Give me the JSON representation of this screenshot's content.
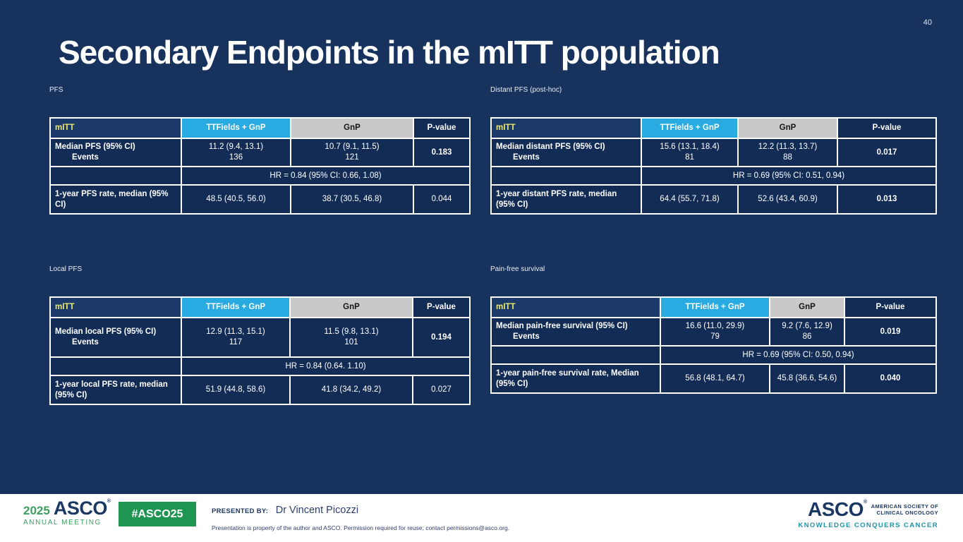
{
  "slide": {
    "page_number": "40",
    "title": "Secondary Endpoints in the mITT population"
  },
  "colors": {
    "slide_background": "#18325E",
    "table_cell_background": "#132C55",
    "header_left_background": "#1B3A69",
    "header_cyan": "#29ABE2",
    "header_gray": "#C9C9C9",
    "mitt_yellow": "#EDE96E",
    "border_white": "#FFFFFF",
    "footer_background": "#FFFFFF",
    "brand_navy": "#1B3764",
    "brand_green": "#3C9E5F",
    "badge_green": "#1F9552",
    "brand_teal": "#1E93A8"
  },
  "tables": [
    {
      "caption": "PFS",
      "header": [
        "mITT",
        "TTFields + GnP",
        "GnP",
        "P-value"
      ],
      "r1": {
        "label": "Median PFS (95% CI)",
        "sub": "Events",
        "v1": "11.2 (9.4, 13.1)",
        "v1b": "136",
        "v2": "10.7 (9.1, 11.5)",
        "v2b": "121",
        "p": "0.183"
      },
      "hr": "HR = 0.84 (95% CI: 0.66, 1.08)",
      "r3": {
        "label": "1-year PFS rate, median (95% CI)",
        "v1": "48.5 (40.5, 56.0)",
        "v2": "38.7 (30.5, 46.8)",
        "p": "0.044"
      }
    },
    {
      "caption": "Distant PFS (post-hoc)",
      "header": [
        "mITT",
        "TTFields + GnP",
        "GnP",
        "P-value"
      ],
      "r1": {
        "label": "Median distant PFS (95% CI)",
        "sub": "Events",
        "v1": "15.6 (13.1, 18.4)",
        "v1b": "81",
        "v2": "12.2 (11.3, 13.7)",
        "v2b": "88",
        "p": "0.017"
      },
      "hr": "HR = 0.69 (95% CI: 0.51, 0.94)",
      "r3": {
        "label": "1-year distant PFS rate, median (95% CI)",
        "v1": "64.4 (55.7, 71.8)",
        "v2": "52.6 (43.4, 60.9)",
        "p": "0.013"
      }
    },
    {
      "caption": "Local PFS",
      "header": [
        "mITT",
        "TTFields + GnP",
        "GnP",
        "P-value"
      ],
      "r1": {
        "label": "Median local PFS (95% CI)",
        "sub": "Events",
        "v1": "12.9 (11.3, 15.1)",
        "v1b": "117",
        "v2": "11.5 (9.8, 13.1)",
        "v2b": "101",
        "p": "0.194"
      },
      "hr": "HR = 0.84 (0.64. 1.10)",
      "r3": {
        "label": "1-year local PFS rate, median (95% CI)",
        "v1": "51.9 (44.8, 58.6)",
        "v2": "41.8 (34.2, 49.2)",
        "p": "0.027"
      }
    },
    {
      "caption": "Pain-free survival",
      "header": [
        "mITT",
        "TTFields + GnP",
        "GnP",
        "P-value"
      ],
      "r1": {
        "label": "Median pain-free survival (95% CI)",
        "sub": "Events",
        "v1": "16.6 (11.0, 29.9)",
        "v1b": "79",
        "v2": "9.2 (7.6, 12.9)",
        "v2b": "86",
        "p": "0.019"
      },
      "hr": "HR = 0.69 (95% CI: 0.50, 0.94)",
      "r3": {
        "label": "1-year pain-free survival rate, Median (95% CI)",
        "v1": "56.8 (48.1, 64.7)",
        "v2": "45.8 (36.6, 54.6)",
        "p": "0.040"
      }
    }
  ],
  "footer": {
    "meeting_logo": {
      "year": "2025",
      "asco": "ASCO",
      "reg": "®",
      "meeting": "ANNUAL MEETING"
    },
    "hashtag": "#ASCO25",
    "presented_by_label": "PRESENTED BY:",
    "presenter": "Dr Vincent Picozzi",
    "disclaimer": "Presentation is property of the author and ASCO. Permission required for reuse; contact permissions@asco.org.",
    "asco_logo": {
      "name": "ASCO",
      "reg": "®",
      "society_line1": "AMERICAN SOCIETY OF",
      "society_line2": "CLINICAL ONCOLOGY",
      "tagline": "KNOWLEDGE CONQUERS CANCER"
    }
  }
}
